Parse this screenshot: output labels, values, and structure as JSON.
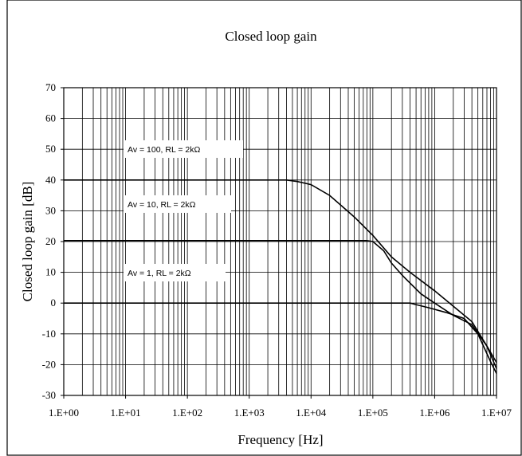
{
  "chart_data": {
    "type": "line",
    "title": "Closed loop gain",
    "xlabel": "Frequency [Hz]",
    "ylabel": "Closed loop gain [dB]",
    "x_scale": "log",
    "xlim": [
      1,
      10000000
    ],
    "ylim": [
      -30,
      70
    ],
    "x_ticks": [
      1,
      10,
      100,
      1000,
      10000,
      100000,
      1000000,
      10000000
    ],
    "x_tick_labels": [
      "1.E+00",
      "1.E+01",
      "1.E+02",
      "1.E+03",
      "1.E+04",
      "1.E+05",
      "1.E+06",
      "1.E+07"
    ],
    "y_ticks": [
      -30,
      -20,
      -10,
      0,
      10,
      20,
      30,
      40,
      50,
      60,
      70
    ],
    "y_tick_labels": [
      "-30",
      "-20",
      "-10",
      "0",
      "10",
      "20",
      "30",
      "40",
      "50",
      "60",
      "70"
    ],
    "grid": true,
    "legend": "none",
    "line_color": "#000000",
    "series": [
      {
        "name": "Av = 100, RL = 2kΩ",
        "points": [
          [
            1,
            40
          ],
          [
            1000,
            40
          ],
          [
            4000,
            40
          ],
          [
            6000,
            39.5
          ],
          [
            10000,
            38.5
          ],
          [
            20000,
            35
          ],
          [
            50000,
            28
          ],
          [
            100000,
            22
          ],
          [
            200000,
            15
          ],
          [
            400000,
            10
          ],
          [
            1000000,
            4
          ],
          [
            2000000,
            -1
          ],
          [
            4000000,
            -6
          ],
          [
            7000000,
            -14
          ],
          [
            12000000,
            -22
          ]
        ]
      },
      {
        "name": "Av = 10, RL = 2kΩ",
        "points": [
          [
            1,
            20.3
          ],
          [
            10000,
            20.3
          ],
          [
            80000,
            20.3
          ],
          [
            100000,
            20
          ],
          [
            150000,
            17
          ],
          [
            200000,
            13
          ],
          [
            300000,
            9
          ],
          [
            600000,
            3
          ],
          [
            1000000,
            0
          ],
          [
            2000000,
            -4
          ],
          [
            4000000,
            -7
          ],
          [
            7000000,
            -14
          ],
          [
            12000000,
            -25
          ]
        ]
      },
      {
        "name": "Av = 1, RL = 2kΩ",
        "points": [
          [
            1,
            0
          ],
          [
            100000,
            0
          ],
          [
            400000,
            0
          ],
          [
            500000,
            -0.5
          ],
          [
            800000,
            -1.5
          ],
          [
            1500000,
            -3
          ],
          [
            3000000,
            -5
          ],
          [
            5000000,
            -10
          ],
          [
            8000000,
            -19
          ],
          [
            12000000,
            -26
          ]
        ]
      }
    ],
    "annotations": [
      "Av = 100, RL = 2kΩ",
      "Av = 10, RL = 2kΩ",
      "Av = 1, RL = 2kΩ"
    ]
  }
}
